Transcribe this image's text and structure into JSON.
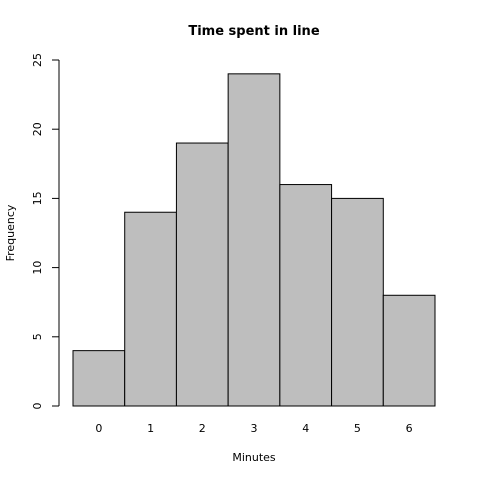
{
  "chart_data": {
    "type": "bar",
    "title": "Time spent in line",
    "x_label": "Minutes",
    "y_label": "Frequency",
    "categories": [
      "0",
      "1",
      "2",
      "3",
      "4",
      "5",
      "6"
    ],
    "values": [
      4,
      14,
      19,
      24,
      16,
      15,
      8
    ],
    "color": "#bebebe",
    "ylim": [
      0,
      25
    ],
    "yticks": [
      0,
      5,
      10,
      15,
      20,
      25
    ]
  }
}
